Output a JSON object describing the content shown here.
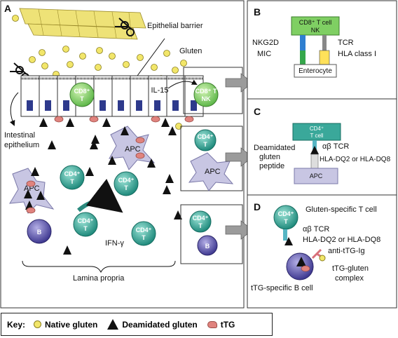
{
  "panels": {
    "a": {
      "letter": "A",
      "epithelial_barrier": "Epithelial barrier",
      "gluten": "Gluten",
      "il15": "IL-15",
      "intestinal_epithelium_l1": "Intestinal",
      "intestinal_epithelium_l2": "epithelium",
      "ifn_gamma": "IFN-γ",
      "lamina_propria": "Lamina propria",
      "cd8_t_l1": "CD8⁺",
      "cd8_t_l2": "T",
      "cd8_tnk_l1": "CD8⁺ T",
      "cd8_tnk_l2": "NK",
      "cd4_l1": "CD4⁺",
      "cd4_l2": "T",
      "apc": "APC",
      "b": "B"
    },
    "b": {
      "letter": "B",
      "cell_l1": "CD8⁺ T cell",
      "cell_l2": "NK",
      "nkg2d": "NKG2D",
      "mic": "MIC",
      "tcr": "TCR",
      "hla_class1": "HLA class I",
      "enterocyte": "Enterocyte"
    },
    "c": {
      "letter": "C",
      "cell_l1": "CD4⁺",
      "cell_l2": "T cell",
      "deamidated_l1": "Deamidated",
      "deamidated_l2": "gluten",
      "deamidated_l3": "peptide",
      "ab_tcr": "αβ TCR",
      "hla": "HLA-DQ2 or HLA-DQ8",
      "apc": "APC"
    },
    "d": {
      "letter": "D",
      "gluten_specific": "Gluten-specific T cell",
      "cd4_l1": "CD4⁺",
      "cd4_l2": "T",
      "ab_tcr": "αβ TCR",
      "hla": "HLA-DQ2 or HLA-DQ8",
      "anti_ttg": "anti-tTG-Ig",
      "complex_l1": "tTG-gluten",
      "complex_l2": "complex",
      "ttg_b_cell": "tTG-specific B cell"
    }
  },
  "key": {
    "title": "Key:",
    "native_gluten": "Native gluten",
    "deamidated_gluten": "Deamidated gluten",
    "ttg": "tTG"
  },
  "colors": {
    "t_cell": "#3aa89a",
    "cd8": "#7fcf63",
    "apc": "#c8c6e3",
    "b_cell": "#5b55a8",
    "gluten": "#f2e66a",
    "ttg": "#e0837e",
    "nucleus": "#2e3a8c"
  }
}
